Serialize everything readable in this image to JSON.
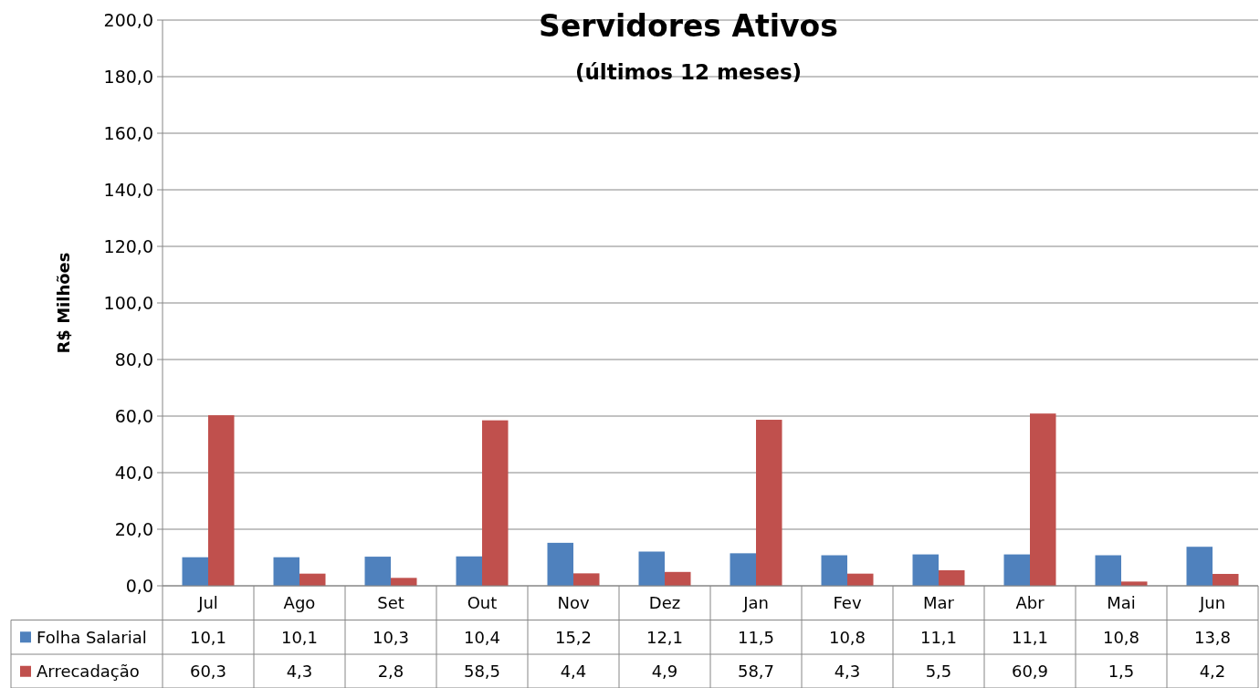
{
  "chart_data": {
    "type": "bar",
    "title": "Servidores Ativos",
    "subtitle": "(últimos 12 meses)",
    "ylabel": "R$ Milhões",
    "categories": [
      "Jul",
      "Ago",
      "Set",
      "Out",
      "Nov",
      "Dez",
      "Jan",
      "Fev",
      "Mar",
      "Abr",
      "Mai",
      "Jun"
    ],
    "series": [
      {
        "name": "Folha Salarial",
        "color": "#4f81bd",
        "values": [
          10.1,
          10.1,
          10.3,
          10.4,
          15.2,
          12.1,
          11.5,
          10.8,
          11.1,
          11.1,
          10.8,
          13.8
        ],
        "value_labels": [
          "10,1",
          "10,1",
          "10,3",
          "10,4",
          "15,2",
          "12,1",
          "11,5",
          "10,8",
          "11,1",
          "11,1",
          "10,8",
          "13,8"
        ]
      },
      {
        "name": "Arrecadação",
        "color": "#c0504d",
        "values": [
          60.3,
          4.3,
          2.8,
          58.5,
          4.4,
          4.9,
          58.7,
          4.3,
          5.5,
          60.9,
          1.5,
          4.2
        ],
        "value_labels": [
          "60,3",
          "4,3",
          "2,8",
          "58,5",
          "4,4",
          "4,9",
          "58,7",
          "4,3",
          "5,5",
          "60,9",
          "1,5",
          "4,2"
        ]
      }
    ],
    "ylim": [
      0,
      200
    ],
    "yticks": [
      {
        "value": 0,
        "label": "0,0"
      },
      {
        "value": 20,
        "label": "20,0"
      },
      {
        "value": 40,
        "label": "40,0"
      },
      {
        "value": 60,
        "label": "60,0"
      },
      {
        "value": 80,
        "label": "80,0"
      },
      {
        "value": 100,
        "label": "100,0"
      },
      {
        "value": 120,
        "label": "120,0"
      },
      {
        "value": 140,
        "label": "140,0"
      },
      {
        "value": 160,
        "label": "160,0"
      },
      {
        "value": 180,
        "label": "180,0"
      },
      {
        "value": 200,
        "label": "200,0"
      }
    ],
    "grid": "y",
    "legend": "bottom left"
  }
}
